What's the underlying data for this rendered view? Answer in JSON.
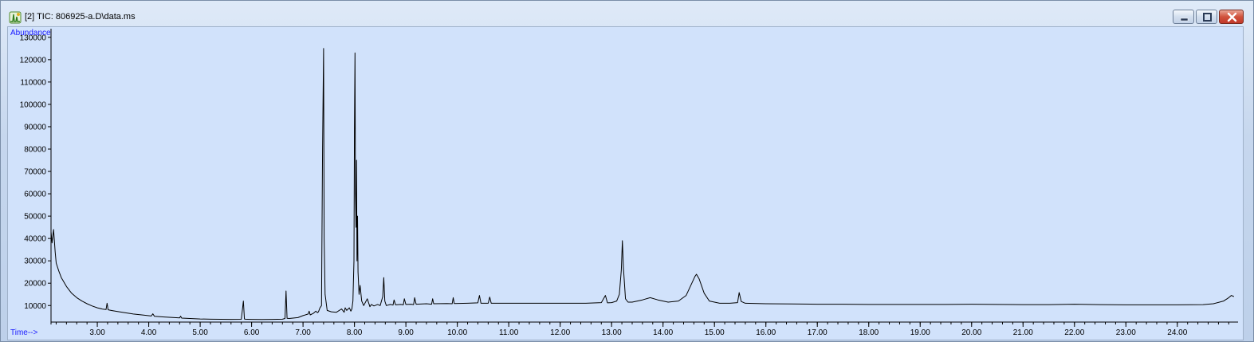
{
  "window": {
    "title": "[2] TIC: 806925-a.D\\data.ms",
    "icon": "chromatogram-app-icon",
    "controls": [
      "minimize-icon",
      "maximize-icon",
      "close-icon"
    ]
  },
  "colors": {
    "plot_background": "#d1e2fb",
    "trace": "#000000",
    "axis_label": "#1a1aff",
    "close_button": "#c9402e"
  },
  "chart_data": {
    "type": "line",
    "ylabel": "Abundance",
    "xlabel": "Time-->",
    "xlim": [
      2.1,
      25.15
    ],
    "ylim": [
      2600,
      131000
    ],
    "grid": false,
    "x_ticks": [
      {
        "value": 3,
        "label": "3.00"
      },
      {
        "value": 4,
        "label": "4.00"
      },
      {
        "value": 5,
        "label": "5.00"
      },
      {
        "value": 6,
        "label": "6.00"
      },
      {
        "value": 7,
        "label": "7.00"
      },
      {
        "value": 8,
        "label": "8.00"
      },
      {
        "value": 9,
        "label": "9.00"
      },
      {
        "value": 10,
        "label": "10.00"
      },
      {
        "value": 11,
        "label": "11.00"
      },
      {
        "value": 12,
        "label": "12.00"
      },
      {
        "value": 13,
        "label": "13.00"
      },
      {
        "value": 14,
        "label": "14.00"
      },
      {
        "value": 15,
        "label": "15.00"
      },
      {
        "value": 16,
        "label": "16.00"
      },
      {
        "value": 17,
        "label": "17.00"
      },
      {
        "value": 18,
        "label": "18.00"
      },
      {
        "value": 19,
        "label": "19.00"
      },
      {
        "value": 20,
        "label": "20.00"
      },
      {
        "value": 21,
        "label": "21.00"
      },
      {
        "value": 22,
        "label": "22.00"
      },
      {
        "value": 23,
        "label": "23.00"
      },
      {
        "value": 24,
        "label": "24.00"
      }
    ],
    "y_ticks": [
      {
        "value": 10000,
        "label": "10000"
      },
      {
        "value": 20000,
        "label": "20000"
      },
      {
        "value": 30000,
        "label": "30000"
      },
      {
        "value": 40000,
        "label": "40000"
      },
      {
        "value": 50000,
        "label": "50000"
      },
      {
        "value": 60000,
        "label": "60000"
      },
      {
        "value": 70000,
        "label": "70000"
      },
      {
        "value": 80000,
        "label": "80000"
      },
      {
        "value": 90000,
        "label": "90000"
      },
      {
        "value": 100000,
        "label": "100000"
      },
      {
        "value": 110000,
        "label": "110000"
      },
      {
        "value": 120000,
        "label": "120000"
      },
      {
        "value": 130000,
        "label": "130000"
      }
    ],
    "series": [
      {
        "x": [
          2.1,
          2.12,
          2.15,
          2.18,
          2.2,
          2.25,
          2.3,
          2.4,
          2.5,
          2.6,
          2.7,
          2.8,
          2.9,
          3.0,
          3.1,
          3.17,
          3.19,
          3.21,
          3.3,
          3.5,
          3.7,
          3.9,
          4.05,
          4.08,
          4.11,
          4.3,
          4.5,
          4.6,
          4.62,
          4.64,
          4.8,
          5.0,
          5.2,
          5.4,
          5.6,
          5.8,
          5.84,
          5.86,
          5.88,
          5.92,
          6.0,
          6.2,
          6.4,
          6.6,
          6.65,
          6.67,
          6.69,
          6.73,
          6.9,
          7.0,
          7.1,
          7.12,
          7.14,
          7.2,
          7.25,
          7.28,
          7.3,
          7.33,
          7.36,
          7.38,
          7.4,
          7.41,
          7.43,
          7.47,
          7.55,
          7.65,
          7.75,
          7.8,
          7.82,
          7.85,
          7.9,
          7.93,
          7.95,
          7.97,
          7.99,
          8.0,
          8.01,
          8.02,
          8.03,
          8.04,
          8.05,
          8.06,
          8.07,
          8.09,
          8.11,
          8.14,
          8.18,
          8.25,
          8.3,
          8.33,
          8.38,
          8.45,
          8.5,
          8.55,
          8.57,
          8.59,
          8.62,
          8.7,
          8.75,
          8.77,
          8.8,
          8.9,
          8.95,
          8.97,
          9.0,
          9.1,
          9.15,
          9.17,
          9.2,
          9.4,
          9.5,
          9.52,
          9.54,
          9.8,
          9.9,
          9.92,
          9.94,
          10.2,
          10.4,
          10.43,
          10.46,
          10.6,
          10.63,
          10.66,
          11.0,
          11.5,
          12.0,
          12.5,
          12.8,
          12.88,
          12.92,
          13.0,
          13.1,
          13.15,
          13.19,
          13.21,
          13.23,
          13.27,
          13.32,
          13.4,
          13.6,
          13.75,
          13.9,
          14.1,
          14.3,
          14.45,
          14.55,
          14.62,
          14.65,
          14.7,
          14.8,
          14.9,
          15.1,
          15.3,
          15.45,
          15.48,
          15.52,
          15.6,
          16.0,
          16.5,
          17.0,
          17.5,
          18.0,
          18.5,
          19.0,
          19.5,
          20.0,
          20.5,
          21.0,
          21.5,
          22.0,
          22.5,
          23.0,
          23.5,
          24.0,
          24.5,
          24.7,
          24.9,
          25.0,
          25.05,
          25.1
        ],
        "y": [
          43000,
          38000,
          44000,
          34000,
          29000,
          25500,
          22500,
          18500,
          15500,
          13500,
          12000,
          10800,
          9800,
          9000,
          8400,
          8200,
          11000,
          8100,
          7700,
          6900,
          6200,
          5700,
          5300,
          6300,
          5200,
          4900,
          4600,
          4500,
          5200,
          4400,
          4200,
          4000,
          3900,
          3850,
          3800,
          3850,
          12000,
          4000,
          3900,
          3850,
          3800,
          3750,
          3800,
          3900,
          4200,
          16500,
          4300,
          4200,
          4600,
          5500,
          6200,
          7500,
          5800,
          6500,
          7500,
          6800,
          7200,
          9000,
          10000,
          80000,
          125000,
          40000,
          15000,
          7800,
          7200,
          7000,
          8500,
          7000,
          9000,
          7800,
          9000,
          7500,
          8500,
          12000,
          30000,
          88000,
          123000,
          60000,
          45000,
          75000,
          30000,
          50000,
          25000,
          15000,
          19000,
          12000,
          10000,
          13000,
          9500,
          10500,
          9800,
          10500,
          10000,
          14000,
          22500,
          12000,
          10000,
          10500,
          10200,
          12500,
          10300,
          10500,
          10300,
          13000,
          10500,
          10600,
          10400,
          13500,
          10600,
          10800,
          10600,
          13000,
          10800,
          10900,
          10800,
          13500,
          10900,
          11000,
          11200,
          14500,
          11000,
          11000,
          13800,
          11000,
          11000,
          11000,
          11000,
          11000,
          11300,
          14500,
          11200,
          11300,
          12000,
          15000,
          26000,
          39000,
          27000,
          13000,
          11500,
          11500,
          12500,
          13500,
          12500,
          11500,
          12000,
          14500,
          19500,
          23000,
          24000,
          22000,
          15500,
          12000,
          11000,
          11000,
          11300,
          15800,
          11800,
          11000,
          10800,
          10700,
          10600,
          10600,
          10500,
          10500,
          10500,
          10500,
          10600,
          10500,
          10400,
          10400,
          10600,
          10400,
          10300,
          10300,
          10300,
          10400,
          10800,
          12000,
          13500,
          14500,
          14000
        ]
      }
    ]
  }
}
